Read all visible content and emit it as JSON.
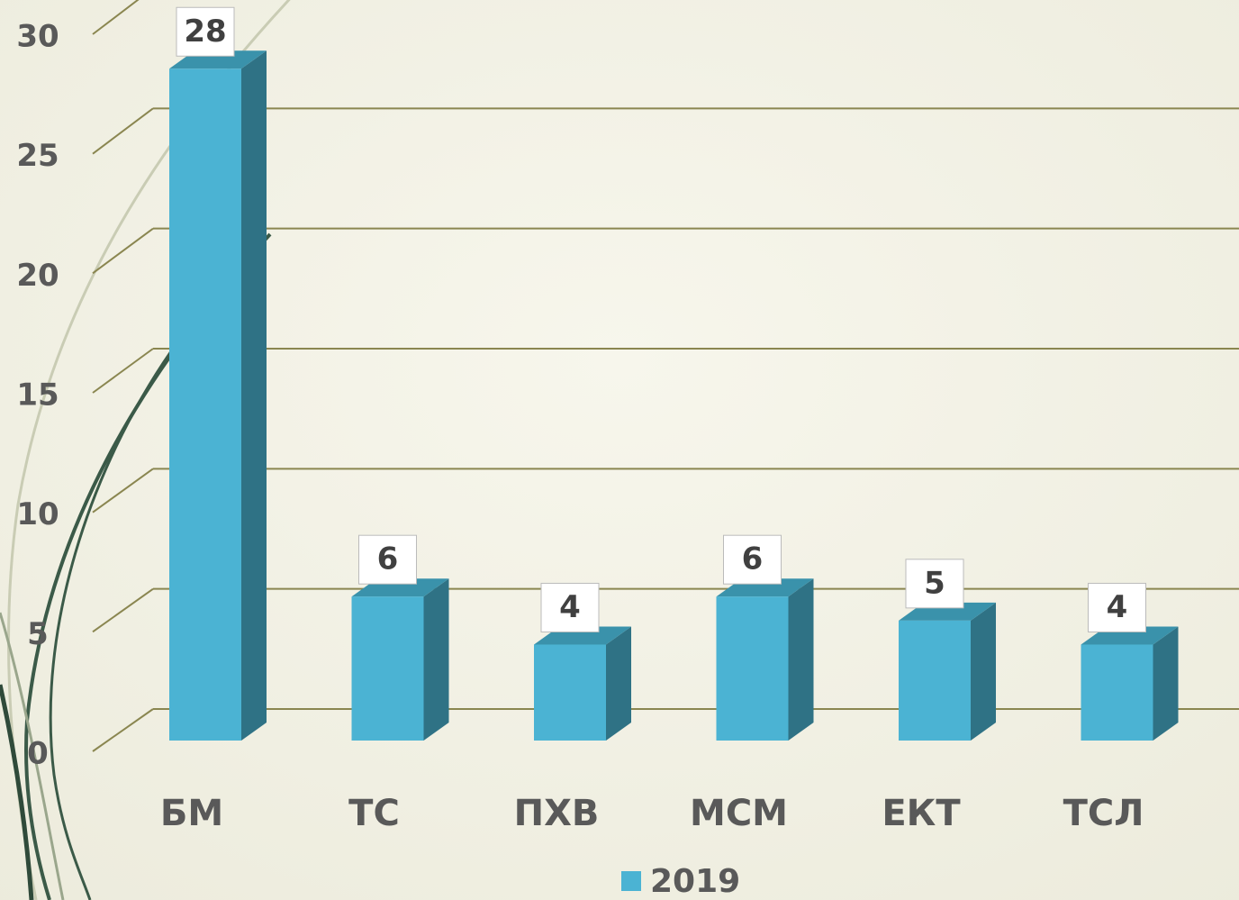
{
  "chart_data": {
    "type": "bar3d",
    "categories": [
      "БМ",
      "ТС",
      "ПХВ",
      "МСМ",
      "ЕКТ",
      "ТСЛ"
    ],
    "series": [
      {
        "name": "2019",
        "color": "#4bb3d3",
        "values": [
          28,
          6,
          4,
          6,
          5,
          4
        ]
      }
    ],
    "ylim": [
      0,
      30
    ],
    "yticks": [
      0,
      5,
      10,
      15,
      20,
      25,
      30
    ],
    "grid": true,
    "legend": "bottom"
  }
}
